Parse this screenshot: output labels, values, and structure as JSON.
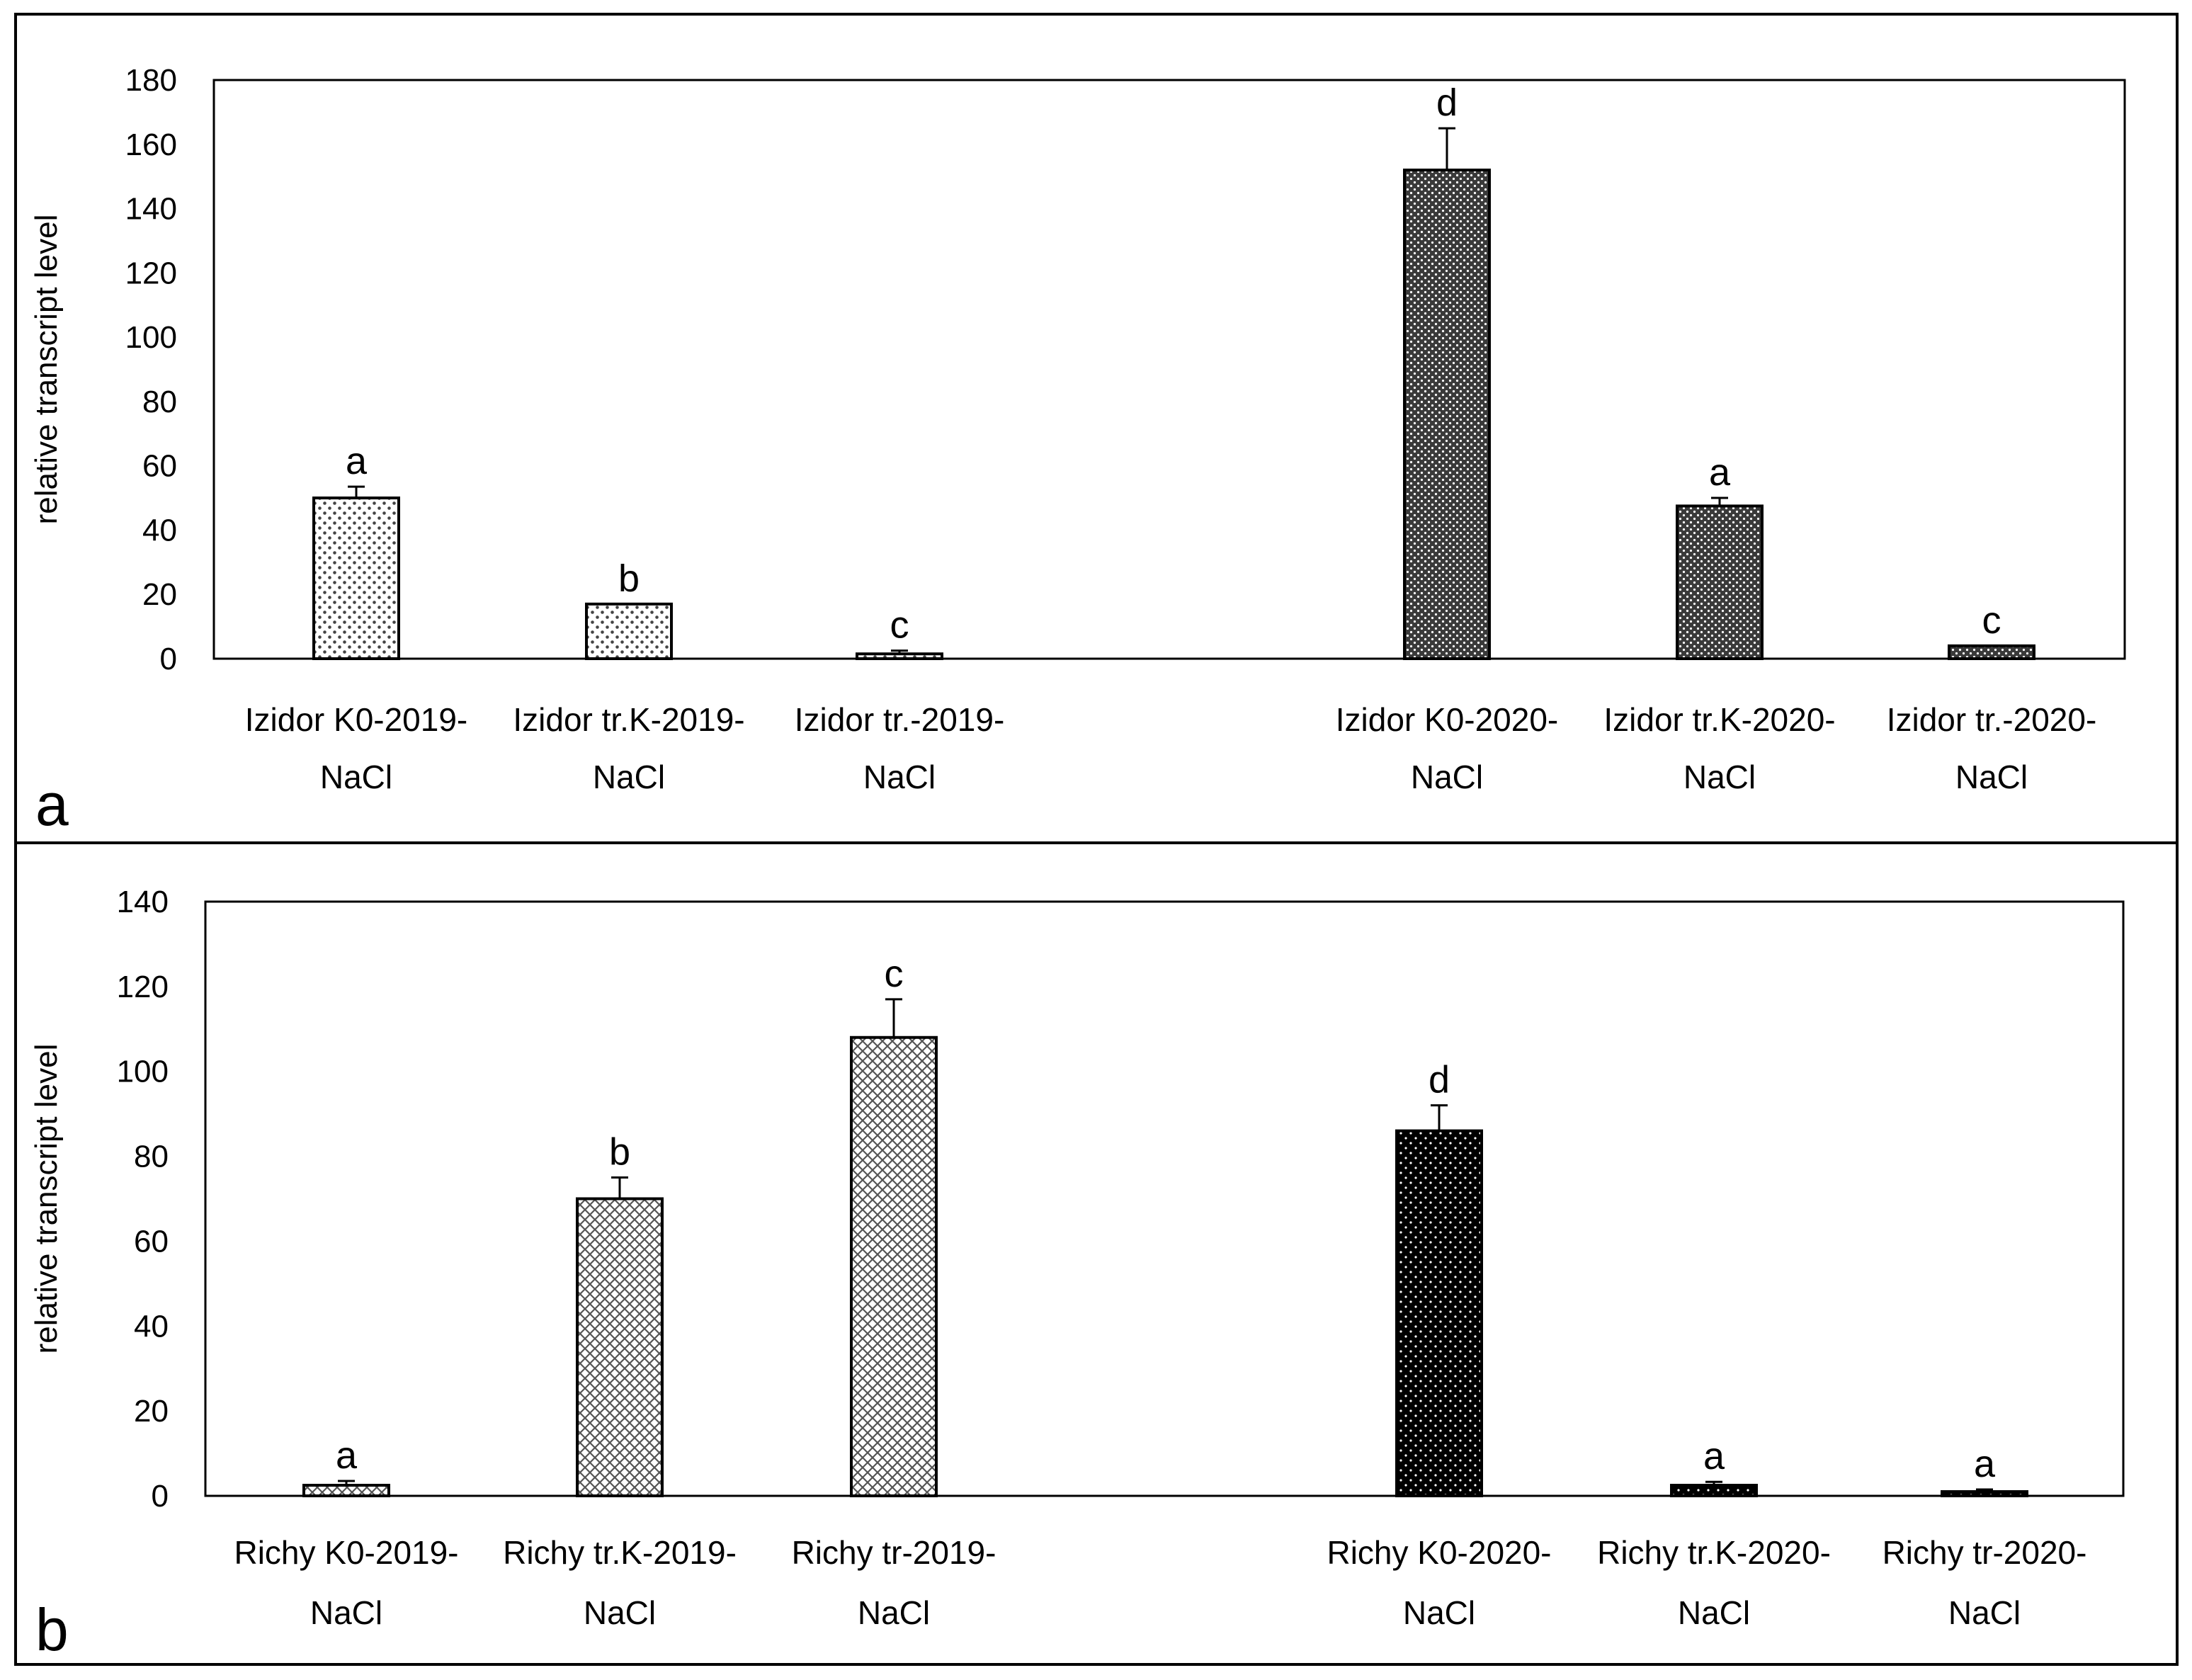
{
  "chart_data": [
    {
      "panel_label": "a",
      "type": "bar",
      "ylabel": "relative transcript level",
      "ylim": [
        0,
        180
      ],
      "yticks": [
        0,
        20,
        40,
        60,
        80,
        100,
        120,
        140,
        160,
        180
      ],
      "categories": [
        [
          "Izidor K0-2019-",
          "NaCl"
        ],
        [
          "Izidor tr.K-2019-",
          "NaCl"
        ],
        [
          "Izidor tr.-2019-",
          "NaCl"
        ],
        [
          "Izidor K0-2020-",
          "NaCl"
        ],
        [
          "Izidor tr.K-2020-",
          "NaCl"
        ],
        [
          "Izidor tr.-2020-",
          "NaCl"
        ]
      ],
      "values": [
        50,
        17,
        1.5,
        152,
        47.5,
        4
      ],
      "errors": [
        3.5,
        0,
        1,
        13,
        2.5,
        0
      ],
      "significance_letters": [
        "a",
        "b",
        "c",
        "d",
        "a",
        "c"
      ],
      "patterns": [
        "dots-light",
        "dots-light",
        "dots-light",
        "dots-dense",
        "dots-dense",
        "dots-dense"
      ]
    },
    {
      "panel_label": "b",
      "type": "bar",
      "ylabel": "relative transcript level",
      "ylim": [
        0,
        140
      ],
      "yticks": [
        0,
        20,
        40,
        60,
        80,
        100,
        120,
        140
      ],
      "categories": [
        [
          "Richy K0-2019-",
          "NaCl"
        ],
        [
          "Richy tr.K-2019-",
          "NaCl"
        ],
        [
          "Richy tr-2019-",
          "NaCl"
        ],
        [
          "Richy K0-2020-",
          "NaCl"
        ],
        [
          "Richy tr.K-2020-",
          "NaCl"
        ],
        [
          "Richy tr-2020-",
          "NaCl"
        ]
      ],
      "values": [
        2.5,
        70,
        108,
        86,
        2.5,
        1
      ],
      "errors": [
        1,
        5,
        9,
        6,
        0.8,
        0.5
      ],
      "significance_letters": [
        "a",
        "b",
        "c",
        "d",
        "a",
        "a"
      ],
      "patterns": [
        "crosshatch",
        "crosshatch",
        "crosshatch",
        "black-dots",
        "black-dots",
        "black-dots"
      ]
    }
  ]
}
